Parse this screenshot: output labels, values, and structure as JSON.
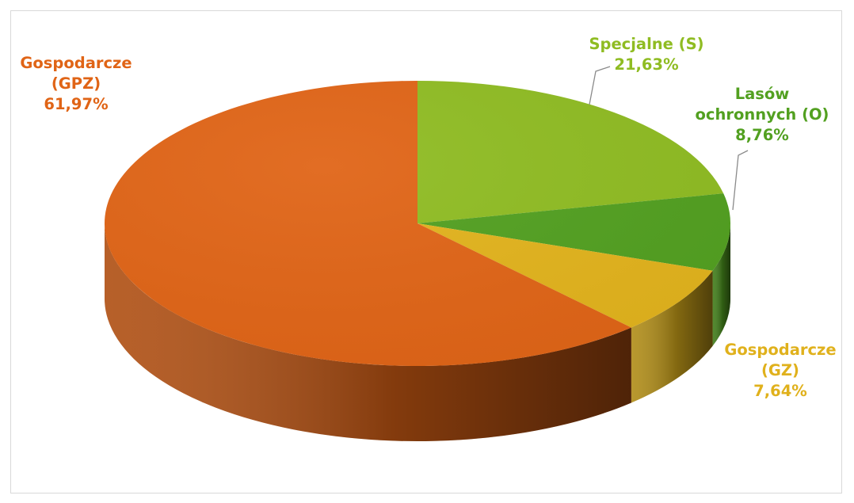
{
  "chart_data": {
    "type": "pie",
    "three_d": true,
    "title": "",
    "legend": "none",
    "slices": [
      {
        "name": "Specjalne (S)",
        "label_lines": [
          "Specjalne (S)"
        ],
        "value": 21.63,
        "value_text": "21,63%",
        "color": "#8fbc22"
      },
      {
        "name": "Lasów ochronnych (O)",
        "label_lines": [
          "Lasów",
          "ochronnych (O)"
        ],
        "value": 8.76,
        "value_text": "8,76%",
        "color": "#52a020"
      },
      {
        "name": "Gospodarcze (GZ)",
        "label_lines": [
          "Gospodarcze",
          "(GZ)"
        ],
        "value": 7.64,
        "value_text": "7,64%",
        "color": "#e2b31c"
      },
      {
        "name": "Gospodarcze (GPZ)",
        "label_lines": [
          "Gospodarcze",
          "(GPZ)"
        ],
        "value": 61.97,
        "value_text": "61,97%",
        "color": "#e06416"
      }
    ]
  }
}
